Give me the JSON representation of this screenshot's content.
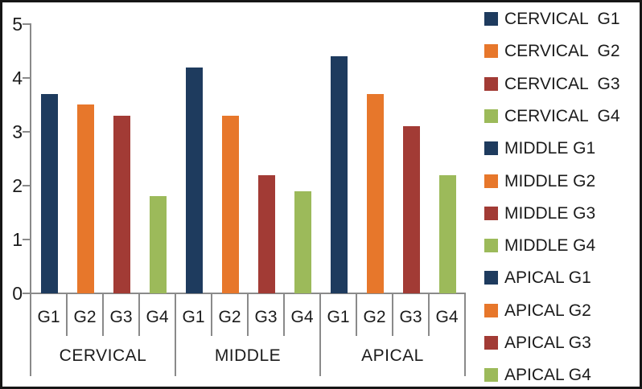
{
  "figure": {
    "background": "#ffffff",
    "border_color": "#161616",
    "axis_color": "#8a8a8a",
    "text_color": "#1b1b1b"
  },
  "chart_data": {
    "type": "bar",
    "title": "",
    "xlabel": "",
    "ylabel": "",
    "categories": [
      "CERVICAL",
      "MIDDLE",
      "APICAL"
    ],
    "bar_labels": [
      "G1",
      "G2",
      "G3",
      "G4"
    ],
    "series": [
      {
        "name": "G1",
        "color": "#1e3b5e",
        "values": [
          3.7,
          4.2,
          4.4
        ]
      },
      {
        "name": "G2",
        "color": "#e7772b",
        "values": [
          3.5,
          3.3,
          3.7
        ]
      },
      {
        "name": "G3",
        "color": "#a23b35",
        "values": [
          3.3,
          2.2,
          3.1
        ]
      },
      {
        "name": "G4",
        "color": "#9cba5a",
        "values": [
          1.8,
          1.9,
          2.2
        ]
      }
    ],
    "ylim": [
      0,
      5
    ],
    "yticks": [
      "0",
      "1",
      "2",
      "3",
      "4",
      "5"
    ],
    "grid": false,
    "legend_position": "right",
    "legend": [
      {
        "label": "CERVICAL  G1",
        "color": "#1e3b5e"
      },
      {
        "label": "CERVICAL  G2",
        "color": "#e7772b"
      },
      {
        "label": "CERVICAL  G3",
        "color": "#a23b35"
      },
      {
        "label": "CERVICAL  G4",
        "color": "#9cba5a"
      },
      {
        "label": "MIDDLE G1",
        "color": "#1e3b5e"
      },
      {
        "label": "MIDDLE G2",
        "color": "#e7772b"
      },
      {
        "label": "MIDDLE G3",
        "color": "#a23b35"
      },
      {
        "label": "MIDDLE G4",
        "color": "#9cba5a"
      },
      {
        "label": "APICAL G1",
        "color": "#1e3b5e"
      },
      {
        "label": "APICAL G2",
        "color": "#e7772b"
      },
      {
        "label": "APICAL G3",
        "color": "#a23b35"
      },
      {
        "label": "APICAL G4",
        "color": "#9cba5a"
      }
    ]
  }
}
